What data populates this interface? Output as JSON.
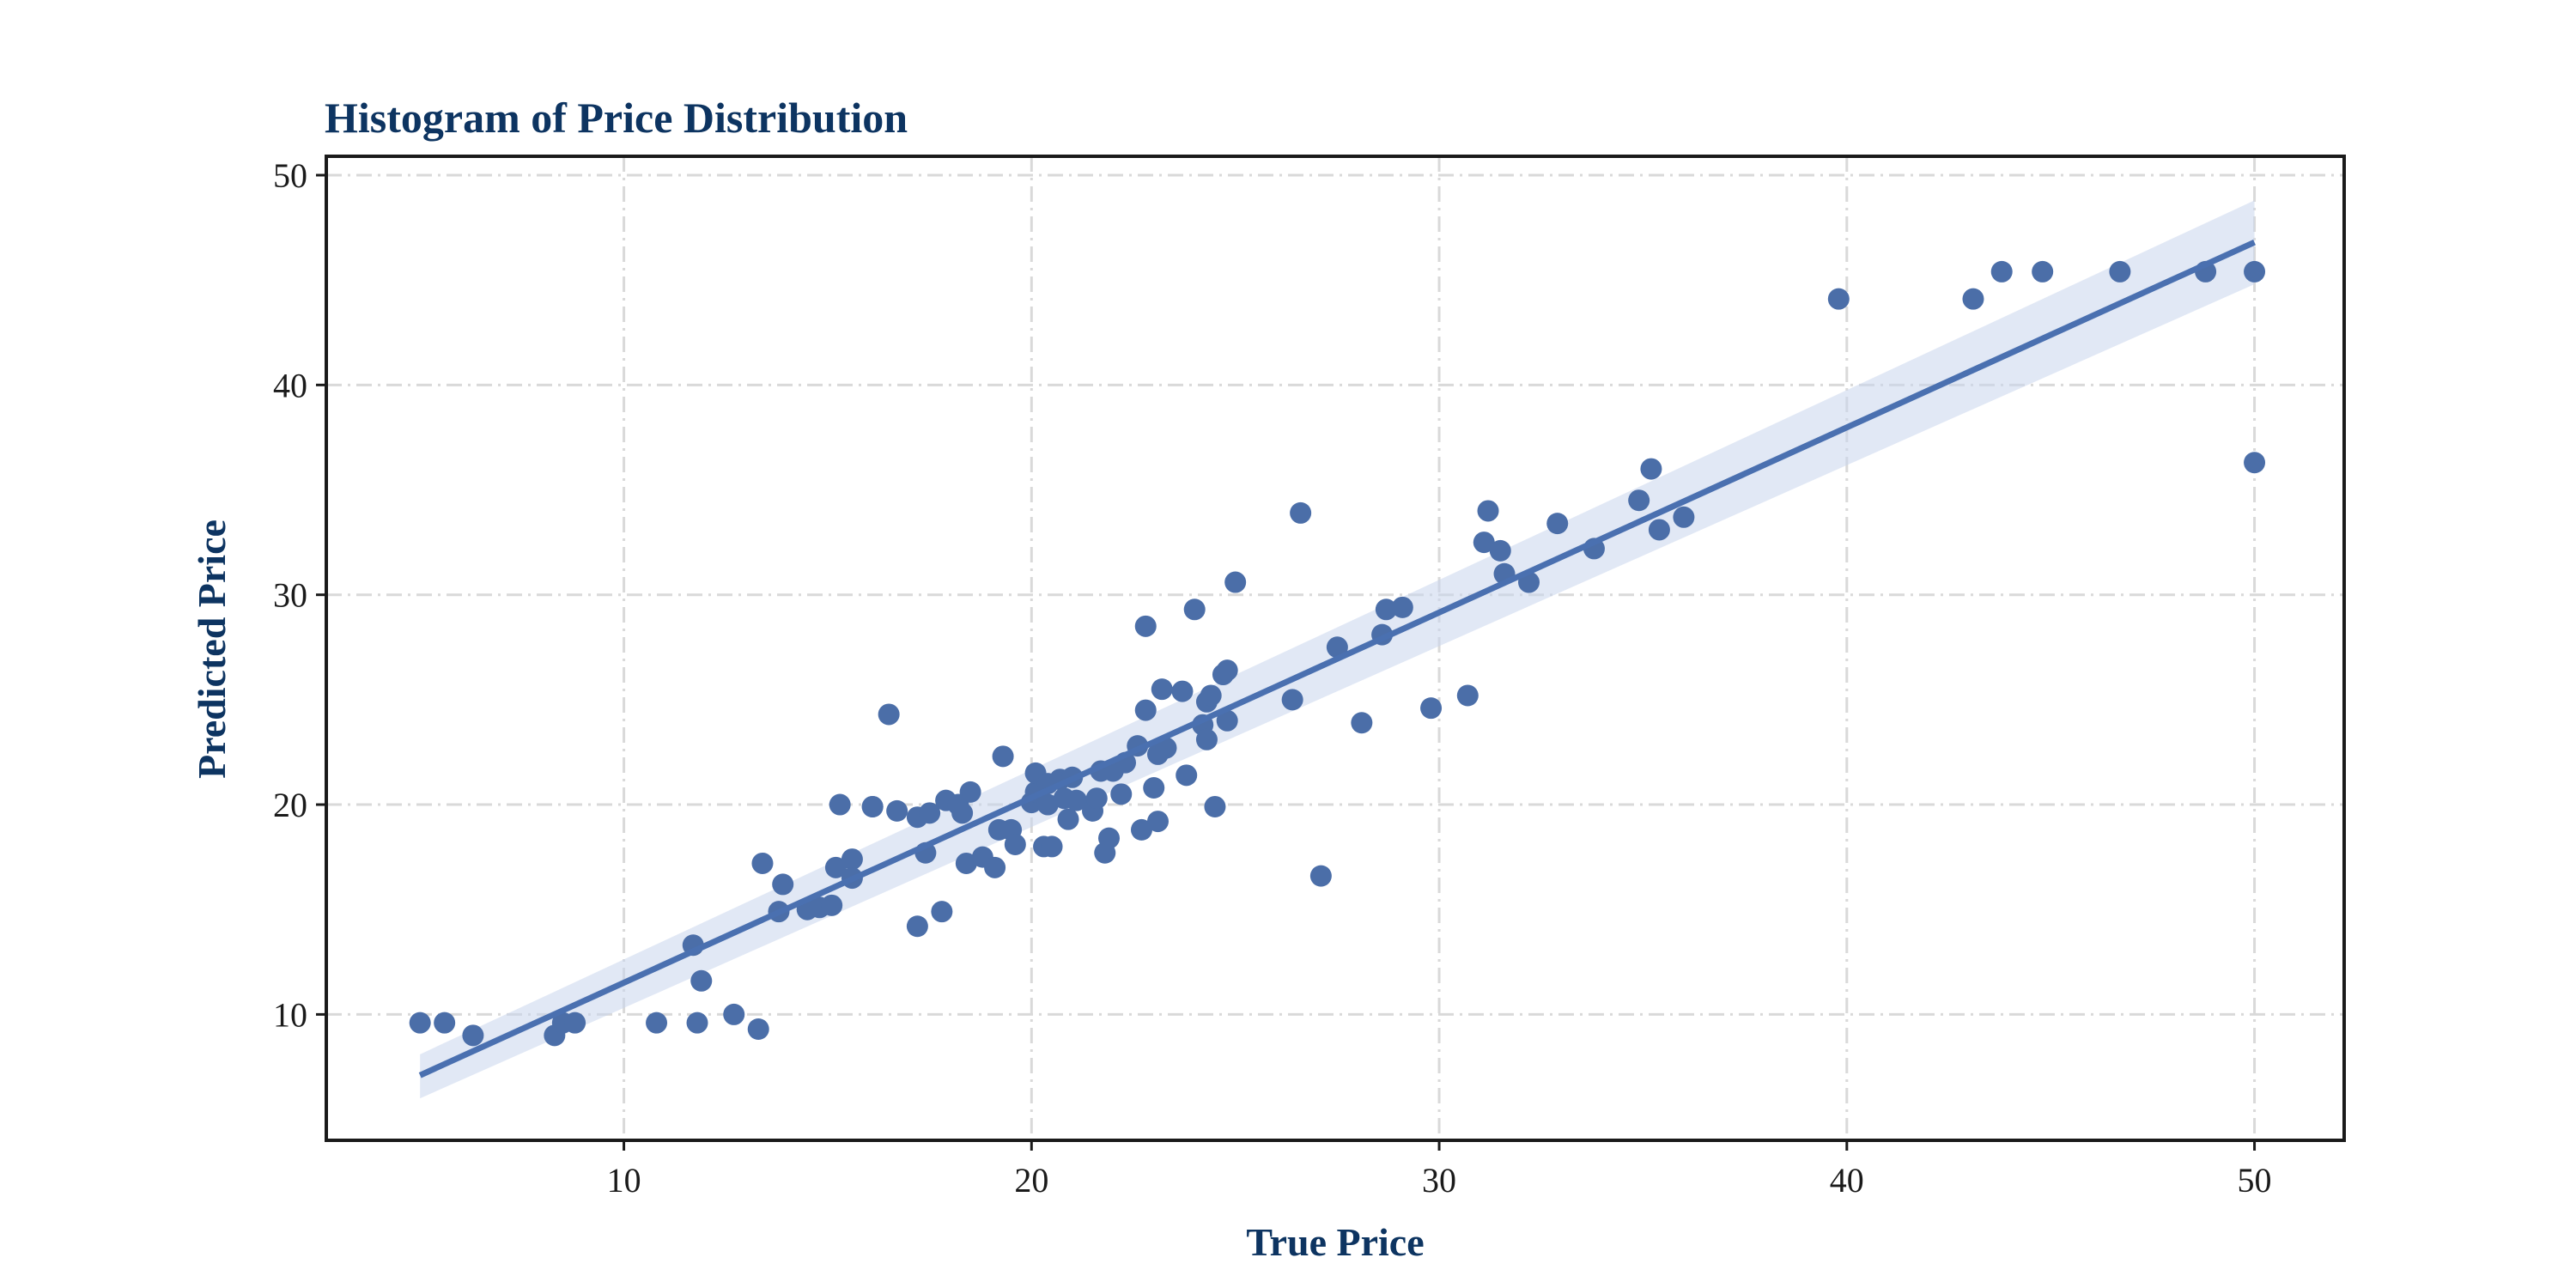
{
  "colors": {
    "title": "#0d3461",
    "axis_label": "#0d3461",
    "points": "#4b6ea8",
    "line": "#4a70b0",
    "ci_band": "#c9d5ec",
    "grid": "#d9d9d9",
    "frame": "#1a1a1a"
  },
  "chart_data": {
    "type": "scatter",
    "title": "Histogram of Price Distribution",
    "xlabel": "True Price",
    "ylabel": "Predicted Price",
    "xlim": [
      2.7,
      52.2
    ],
    "ylim": [
      4.0,
      50.9
    ],
    "xticks": [
      10,
      20,
      30,
      40,
      50
    ],
    "yticks": [
      10,
      20,
      30,
      40,
      50
    ],
    "grid": true,
    "grid_style": "dash-dot",
    "regression": {
      "x": [
        5.0,
        50.0
      ],
      "y": [
        7.1,
        46.8
      ],
      "ci_lower": [
        6.0,
        44.8
      ],
      "ci_upper": [
        8.1,
        48.8
      ]
    },
    "series": [
      {
        "points": [
          [
            5.0,
            9.6
          ],
          [
            5.6,
            9.6
          ],
          [
            6.3,
            9.0
          ],
          [
            8.3,
            9.0
          ],
          [
            8.5,
            9.6
          ],
          [
            8.8,
            9.6
          ],
          [
            10.8,
            9.6
          ],
          [
            11.7,
            13.3
          ],
          [
            11.8,
            9.6
          ],
          [
            11.9,
            11.6
          ],
          [
            12.7,
            10.0
          ],
          [
            13.3,
            9.3
          ],
          [
            13.4,
            17.2
          ],
          [
            13.8,
            14.9
          ],
          [
            13.9,
            16.2
          ],
          [
            14.5,
            15.0
          ],
          [
            14.8,
            15.1
          ],
          [
            15.1,
            15.2
          ],
          [
            15.2,
            17.0
          ],
          [
            15.3,
            20.0
          ],
          [
            15.6,
            17.4
          ],
          [
            15.6,
            16.5
          ],
          [
            16.1,
            19.9
          ],
          [
            16.1,
            19.9
          ],
          [
            16.5,
            24.3
          ],
          [
            16.7,
            19.7
          ],
          [
            17.2,
            14.2
          ],
          [
            17.2,
            19.4
          ],
          [
            17.4,
            17.7
          ],
          [
            17.5,
            19.6
          ],
          [
            17.8,
            14.9
          ],
          [
            17.9,
            20.2
          ],
          [
            18.2,
            20.0
          ],
          [
            18.3,
            19.6
          ],
          [
            18.4,
            17.2
          ],
          [
            18.5,
            20.6
          ],
          [
            18.8,
            17.5
          ],
          [
            19.1,
            17.0
          ],
          [
            19.2,
            18.8
          ],
          [
            19.3,
            22.3
          ],
          [
            19.5,
            18.8
          ],
          [
            19.6,
            18.1
          ],
          [
            20.0,
            20.1
          ],
          [
            20.1,
            20.6
          ],
          [
            20.1,
            21.5
          ],
          [
            20.3,
            18.0
          ],
          [
            20.4,
            20.0
          ],
          [
            20.4,
            21.0
          ],
          [
            20.5,
            18.0
          ],
          [
            20.7,
            21.2
          ],
          [
            20.8,
            20.3
          ],
          [
            20.9,
            19.3
          ],
          [
            21.0,
            21.3
          ],
          [
            21.1,
            20.2
          ],
          [
            21.5,
            19.7
          ],
          [
            21.6,
            20.3
          ],
          [
            21.7,
            21.6
          ],
          [
            21.8,
            17.7
          ],
          [
            21.9,
            18.4
          ],
          [
            22.0,
            21.6
          ],
          [
            22.2,
            20.5
          ],
          [
            22.3,
            22.0
          ],
          [
            22.6,
            22.8
          ],
          [
            22.7,
            18.8
          ],
          [
            22.8,
            24.5
          ],
          [
            22.8,
            28.5
          ],
          [
            23.0,
            20.8
          ],
          [
            23.1,
            19.2
          ],
          [
            23.1,
            22.4
          ],
          [
            23.2,
            25.5
          ],
          [
            23.3,
            22.7
          ],
          [
            23.7,
            25.4
          ],
          [
            23.8,
            21.4
          ],
          [
            24.0,
            29.3
          ],
          [
            24.2,
            23.8
          ],
          [
            24.3,
            23.1
          ],
          [
            24.3,
            24.9
          ],
          [
            24.4,
            25.2
          ],
          [
            24.5,
            19.9
          ],
          [
            24.7,
            26.2
          ],
          [
            24.8,
            26.4
          ],
          [
            24.8,
            24.0
          ],
          [
            25.0,
            30.6
          ],
          [
            26.4,
            25.0
          ],
          [
            26.6,
            33.9
          ],
          [
            27.1,
            16.6
          ],
          [
            27.5,
            27.5
          ],
          [
            28.1,
            23.9
          ],
          [
            28.6,
            28.1
          ],
          [
            28.7,
            29.3
          ],
          [
            29.1,
            29.4
          ],
          [
            29.8,
            24.6
          ],
          [
            30.7,
            25.2
          ],
          [
            31.1,
            32.5
          ],
          [
            31.2,
            34.0
          ],
          [
            31.5,
            32.1
          ],
          [
            31.6,
            31.0
          ],
          [
            32.2,
            30.6
          ],
          [
            32.9,
            33.4
          ],
          [
            33.8,
            32.2
          ],
          [
            34.9,
            34.5
          ],
          [
            35.2,
            36.0
          ],
          [
            35.4,
            33.1
          ],
          [
            36.0,
            33.7
          ],
          [
            39.8,
            44.1
          ],
          [
            43.1,
            44.1
          ],
          [
            43.8,
            45.4
          ],
          [
            44.8,
            45.4
          ],
          [
            46.7,
            45.4
          ],
          [
            48.8,
            45.4
          ],
          [
            50.0,
            45.4
          ],
          [
            50.0,
            36.3
          ]
        ]
      }
    ]
  }
}
